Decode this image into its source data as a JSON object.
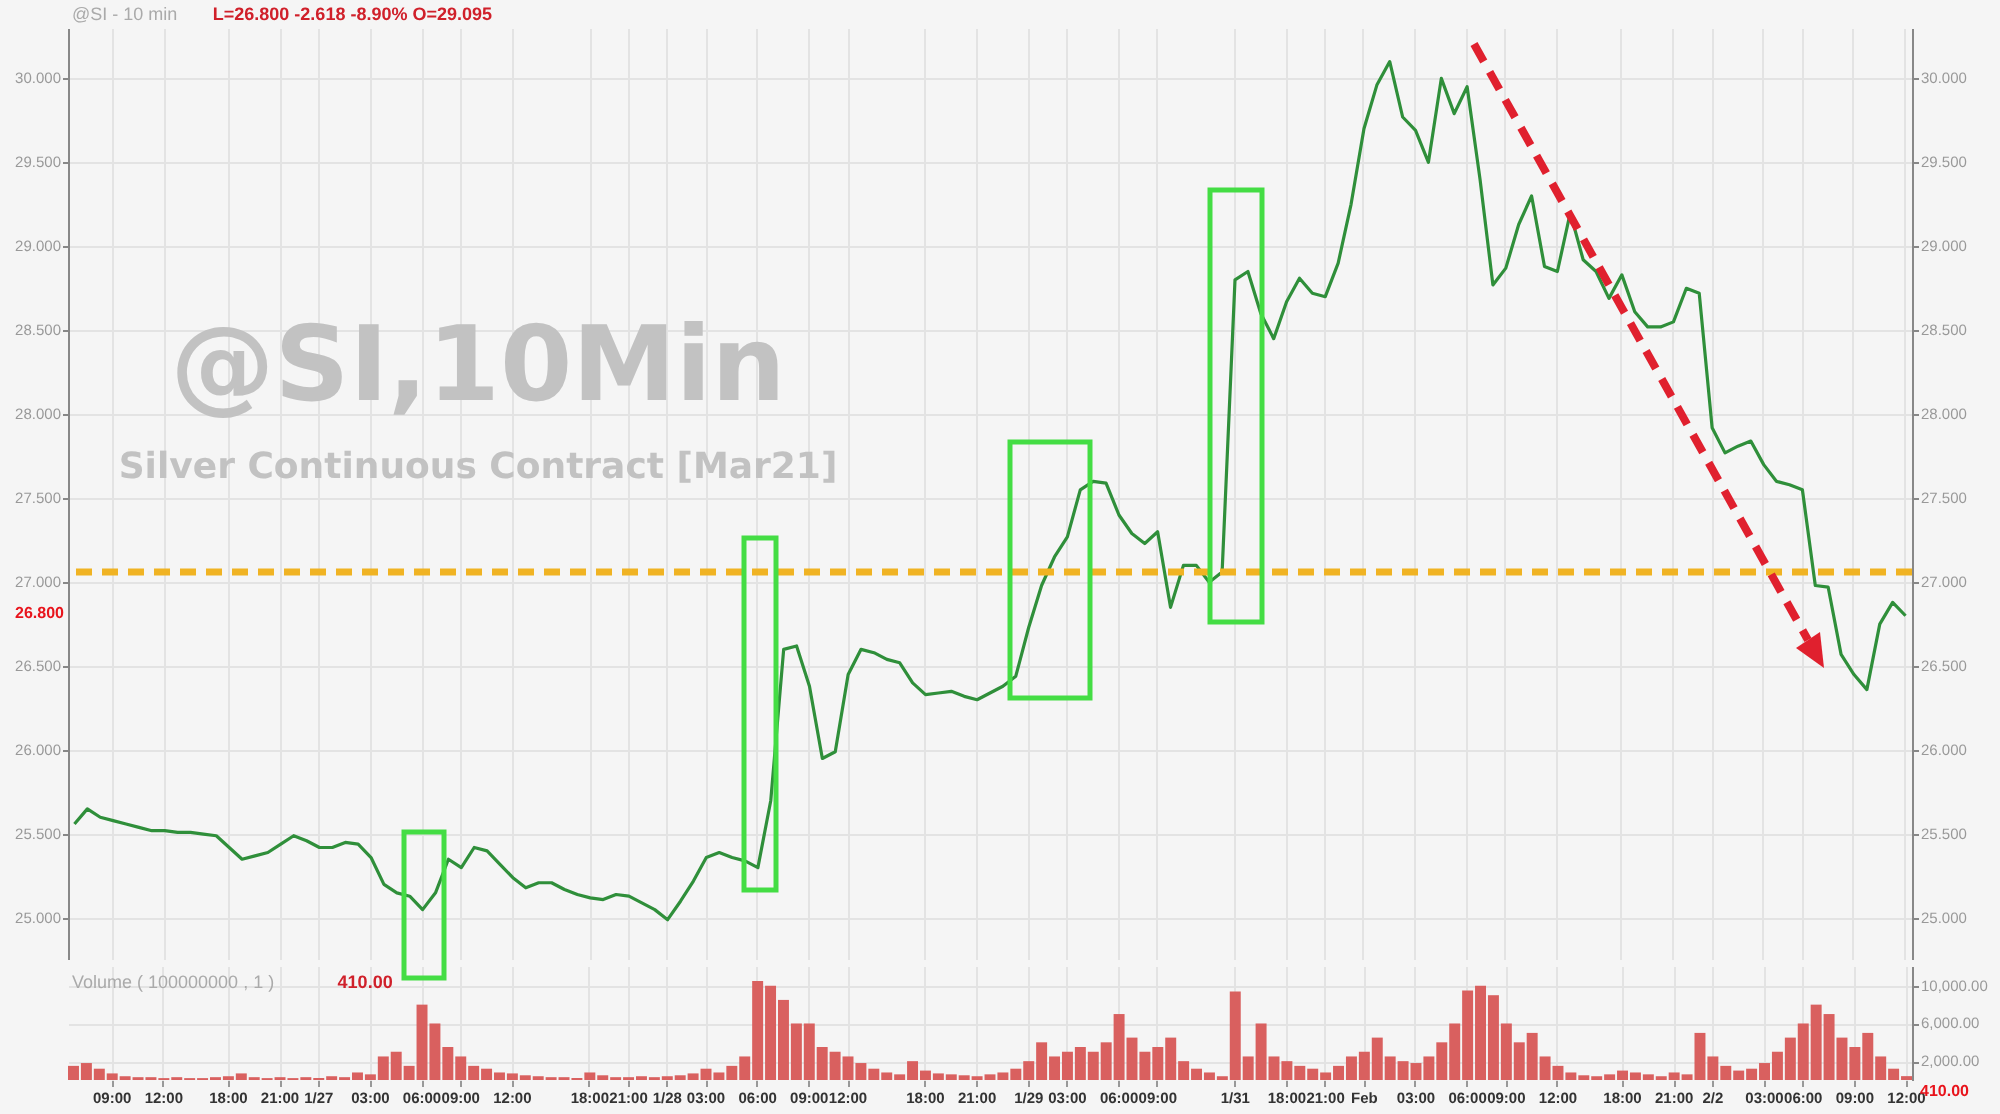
{
  "chart_data": [
    {
      "type": "line",
      "title": "@SI - 10 min",
      "subtitle": "L=26.800  -2.618  -8.90%  O=29.095",
      "categories": [
        null,
        null,
        null,
        null,
        null,
        null,
        null,
        null,
        null,
        null,
        null,
        null,
        null,
        null,
        null,
        null,
        null,
        null,
        null,
        null,
        null,
        null,
        null,
        null,
        null,
        null,
        null,
        null,
        null,
        null,
        null,
        null,
        null,
        null,
        null,
        null,
        null,
        null,
        null,
        null,
        null,
        null,
        null,
        null,
        null,
        null,
        null,
        null,
        null,
        null,
        null,
        null,
        null,
        null,
        null,
        null,
        null,
        null,
        null,
        null,
        null,
        null,
        null,
        null,
        null,
        null,
        null,
        null,
        null,
        null,
        null,
        null,
        null,
        null,
        null,
        null,
        null,
        null,
        null,
        null,
        null,
        null,
        null,
        null,
        null,
        null,
        null,
        null,
        null,
        null,
        null,
        null,
        null,
        null,
        null,
        null,
        null,
        null,
        null,
        null,
        null,
        null,
        null,
        null,
        null,
        null,
        null,
        null,
        null,
        null,
        null,
        null,
        null,
        null,
        null,
        null,
        null,
        null,
        null,
        null,
        null,
        null,
        null,
        null,
        null,
        null,
        null,
        null,
        null,
        null,
        null,
        null,
        null,
        null,
        null,
        null,
        null,
        null,
        null,
        null,
        null,
        null,
        null
      ],
      "values": [
        25.56,
        25.65,
        25.6,
        25.58,
        25.56,
        25.54,
        25.52,
        25.52,
        25.51,
        25.51,
        25.5,
        25.49,
        25.42,
        25.35,
        25.37,
        25.39,
        25.44,
        25.49,
        25.46,
        25.42,
        25.42,
        25.45,
        25.44,
        25.36,
        25.2,
        25.15,
        25.13,
        25.05,
        25.15,
        25.35,
        25.3,
        25.42,
        25.4,
        25.32,
        25.24,
        25.18,
        25.21,
        25.21,
        25.17,
        25.14,
        25.12,
        25.11,
        25.14,
        25.13,
        25.09,
        25.05,
        24.99,
        25.1,
        25.22,
        25.36,
        25.39,
        25.36,
        25.34,
        25.3,
        25.7,
        26.6,
        26.62,
        26.38,
        25.95,
        25.99,
        26.45,
        26.6,
        26.58,
        26.54,
        26.52,
        26.4,
        26.33,
        26.34,
        26.35,
        26.32,
        26.3,
        26.34,
        26.38,
        26.44,
        26.73,
        26.98,
        27.15,
        27.27,
        27.55,
        27.6,
        27.59,
        27.4,
        27.29,
        27.23,
        27.3,
        26.85,
        27.1,
        27.1,
        27.0,
        27.06,
        28.8,
        28.85,
        28.6,
        28.45,
        28.67,
        28.81,
        28.72,
        28.7,
        28.9,
        29.25,
        29.7,
        29.96,
        30.1,
        29.77,
        29.69,
        29.5,
        30.0,
        29.79,
        29.95,
        29.4,
        28.77,
        28.87,
        29.13,
        29.3,
        28.88,
        28.85,
        29.2,
        28.92,
        28.85,
        28.69,
        28.83,
        28.61,
        28.52,
        28.52,
        28.55,
        28.75,
        28.72,
        27.92,
        27.77,
        27.81,
        27.84,
        27.7,
        27.6,
        27.58,
        27.55,
        26.98,
        26.97,
        26.57,
        26.45,
        26.36,
        26.75,
        26.88,
        26.8
      ],
      "color": "#2f8f3a",
      "ylim": [
        24.75,
        30.3
      ],
      "yticks": [
        {
          "value": 25,
          "label": "25.000"
        },
        {
          "value": 25.5,
          "label": "25.500"
        },
        {
          "value": 26,
          "label": "26.000"
        },
        {
          "value": 26.5,
          "label": "26.500"
        },
        {
          "value": 27,
          "label": "27.000"
        },
        {
          "value": 27.5,
          "label": "27.500"
        },
        {
          "value": 28,
          "label": "28.000"
        },
        {
          "value": 28.5,
          "label": "28.500"
        },
        {
          "value": 29,
          "label": "29.000"
        },
        {
          "value": 29.5,
          "label": "29.500"
        },
        {
          "value": 30,
          "label": "30.000"
        }
      ],
      "y2lim": [
        24.75,
        30.3
      ],
      "y2ticks": [
        {
          "value": 25,
          "label": "25.000"
        },
        {
          "value": 25.5,
          "label": "25.500"
        },
        {
          "value": 26,
          "label": "26.000"
        },
        {
          "value": 26.5,
          "label": "26.500"
        },
        {
          "value": 27,
          "label": "27.000"
        },
        {
          "value": 27.5,
          "label": "27.500"
        },
        {
          "value": 28,
          "label": "28.000"
        },
        {
          "value": 28.5,
          "label": "28.500"
        },
        {
          "value": 29,
          "label": "29.000"
        },
        {
          "value": 29.5,
          "label": "29.500"
        },
        {
          "value": 30,
          "label": "30.000"
        }
      ],
      "grid": true,
      "tick_labels": "y",
      "line_style": "solid",
      "ref_lines": [
        {
          "axis": "y",
          "value": 27.06,
          "color": "#f0b323",
          "line_style": "dashed"
        }
      ],
      "annotations": [
        "@SI,10Min",
        "Silver Continuous Contract [Mar21]",
        "26.800"
      ]
    },
    {
      "type": "bar",
      "title": "Volume ( 100000000 , 1 )",
      "subtitle": "410.00",
      "categories": [
        null,
        null,
        null,
        "09:00",
        null,
        null,
        null,
        "12:00",
        null,
        null,
        null,
        null,
        "18:00",
        null,
        null,
        null,
        "21:00",
        null,
        null,
        "1/27",
        null,
        null,
        null,
        "03:00",
        null,
        null,
        null,
        "06:00",
        null,
        null,
        "09:00",
        null,
        null,
        null,
        "12:00",
        null,
        null,
        null,
        null,
        null,
        "18:00",
        null,
        null,
        "21:00",
        null,
        null,
        "1/28",
        null,
        null,
        "03:00",
        null,
        null,
        null,
        "06:00",
        null,
        null,
        null,
        "09:00",
        null,
        null,
        "12:00",
        null,
        null,
        null,
        null,
        null,
        "18:00",
        null,
        null,
        null,
        "21:00",
        null,
        null,
        null,
        "1/29",
        null,
        null,
        "03:00",
        null,
        null,
        null,
        "06:00",
        null,
        null,
        "09:00",
        null,
        null,
        null,
        null,
        null,
        "1/31",
        null,
        null,
        null,
        "18:00",
        null,
        null,
        "21:00",
        null,
        null,
        "Feb",
        null,
        null,
        null,
        "03:00",
        null,
        null,
        null,
        "06:00",
        null,
        null,
        "09:00",
        null,
        null,
        null,
        "12:00",
        null,
        null,
        null,
        null,
        "18:00",
        null,
        null,
        null,
        "21:00",
        null,
        null,
        "2/2",
        null,
        null,
        null,
        "03:00",
        null,
        null,
        "06:00",
        null,
        null,
        null,
        "09:00",
        null,
        null,
        null,
        "12:00"
      ],
      "values": [
        1500,
        1800,
        1200,
        700,
        400,
        300,
        300,
        200,
        300,
        200,
        200,
        300,
        400,
        700,
        300,
        200,
        300,
        200,
        300,
        200,
        400,
        300,
        800,
        600,
        2500,
        3000,
        1500,
        8000,
        6000,
        3500,
        2500,
        1500,
        1200,
        800,
        700,
        500,
        400,
        300,
        300,
        200,
        800,
        500,
        300,
        300,
        400,
        300,
        400,
        500,
        700,
        1200,
        800,
        1500,
        2500,
        10500,
        10000,
        8500,
        6000,
        6000,
        3500,
        3000,
        2500,
        1800,
        1200,
        800,
        600,
        2000,
        1000,
        700,
        600,
        500,
        400,
        600,
        800,
        1200,
        2000,
        4000,
        2500,
        3000,
        3500,
        3000,
        4000,
        7000,
        4500,
        3000,
        3500,
        4500,
        2000,
        1200,
        800,
        400,
        9400,
        2500,
        6000,
        2500,
        2000,
        1500,
        1200,
        800,
        1500,
        2500,
        3000,
        4500,
        2500,
        2000,
        1800,
        2500,
        4000,
        6000,
        9500,
        10000,
        9000,
        6000,
        4000,
        5000,
        2500,
        1500,
        800,
        500,
        400,
        600,
        1000,
        800,
        600,
        400,
        800,
        600,
        5000,
        2500,
        1500,
        1000,
        1200,
        1800,
        3000,
        4500,
        6000,
        8000,
        7000,
        4500,
        3500,
        5000,
        2500,
        1200,
        410
      ],
      "color": "#d9605f",
      "ylim": [
        0,
        12100
      ],
      "yticks": [
        {
          "value": 2000,
          "label": "2,000.00"
        },
        {
          "value": 6000,
          "label": "6,000.00"
        },
        {
          "value": 10000,
          "label": "10,000.00"
        }
      ],
      "grid": true,
      "annotations": [
        "410.00"
      ]
    }
  ]
}
